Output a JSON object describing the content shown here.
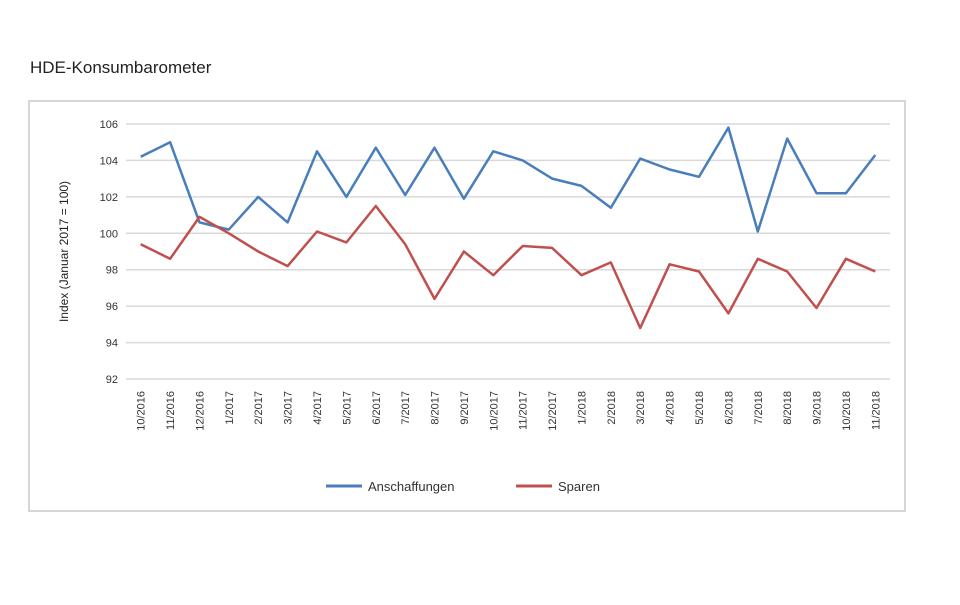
{
  "page": {
    "title": "HDE-Konsumbarometer"
  },
  "chart_data": {
    "type": "line",
    "title": "HDE-Konsumbarometer",
    "xlabel": "",
    "ylabel": "Index (Januar 2017 = 100)",
    "ylim": [
      92,
      106
    ],
    "yticks": [
      92,
      94,
      96,
      98,
      100,
      102,
      104,
      106
    ],
    "grid": true,
    "legend_position": "bottom",
    "categories": [
      "10/2016",
      "11/2016",
      "12/2016",
      "1/2017",
      "2/2017",
      "3/2017",
      "4/2017",
      "5/2017",
      "6/2017",
      "7/2017",
      "8/2017",
      "9/2017",
      "10/2017",
      "11/2017",
      "12/2017",
      "1/2018",
      "2/2018",
      "3/2018",
      "4/2018",
      "5/2018",
      "6/2018",
      "7/2018",
      "8/2018",
      "9/2018",
      "10/2018",
      "11/2018"
    ],
    "series": [
      {
        "name": "Anschaffungen",
        "color": "#4a7ebb",
        "values": [
          104.2,
          105.0,
          100.6,
          100.2,
          102.0,
          100.6,
          104.5,
          102.0,
          104.7,
          102.1,
          104.7,
          101.9,
          104.5,
          104.0,
          103.0,
          102.6,
          101.4,
          104.1,
          103.5,
          103.1,
          105.8,
          100.1,
          105.2,
          102.2,
          102.2,
          104.3
        ]
      },
      {
        "name": "Sparen",
        "color": "#c0504d",
        "values": [
          99.4,
          98.6,
          100.9,
          100.0,
          99.0,
          98.2,
          100.1,
          99.5,
          101.5,
          99.4,
          96.4,
          99.0,
          97.7,
          99.3,
          99.2,
          97.7,
          98.4,
          94.8,
          98.3,
          97.9,
          95.6,
          98.6,
          97.9,
          95.9,
          98.6,
          97.9
        ]
      }
    ]
  }
}
